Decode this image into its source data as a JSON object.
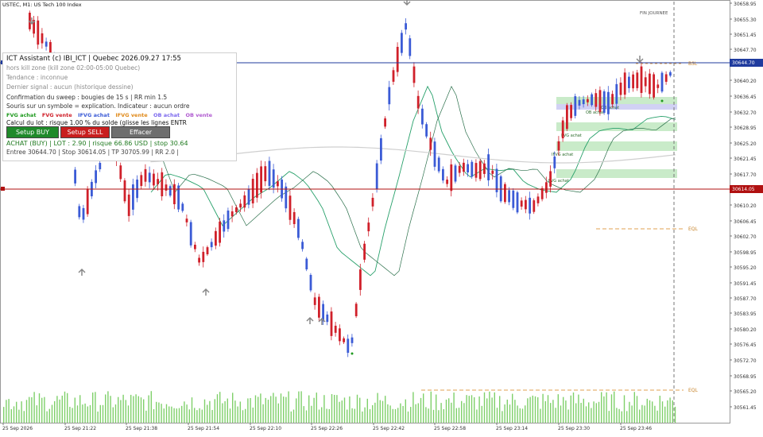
{
  "header": {
    "title": "USTEC, M1:  US Tech 100 Index"
  },
  "session_label": "FIN JOURNEE",
  "price_axis": {
    "labels": [
      "30658.95",
      "30655.30",
      "30651.45",
      "30647.70",
      "30640.20",
      "30636.45",
      "30632.70",
      "30628.95",
      "30625.20",
      "30621.45",
      "30617.70",
      "30610.20",
      "30606.45",
      "30602.70",
      "30598.95",
      "30595.20",
      "30591.45",
      "30587.70",
      "30583.95",
      "30580.20",
      "30576.45",
      "30572.70",
      "30568.95",
      "30565.20",
      "30561.45"
    ],
    "current_price": "30644.70",
    "stop_price": "30614.05"
  },
  "time_axis": {
    "labels": [
      "25 Sep 2026",
      "25 Sep 21:22",
      "25 Sep 21:38",
      "25 Sep 21:54",
      "25 Sep 22:10",
      "25 Sep 22:26",
      "25 Sep 22:42",
      "25 Sep 22:58",
      "25 Sep 23:14",
      "25 Sep 23:30",
      "25 Sep 23:46"
    ]
  },
  "levels": {
    "eql_top": "EQL",
    "eql_bottom": "EQL",
    "bsl": "BSL"
  },
  "zone_labels": [
    "OB achat",
    "OB achat",
    "FVG achat",
    "IFVG achat",
    "FVG achat"
  ],
  "colors": {
    "bull": "#3b5bd6",
    "bear": "#d0202a",
    "volume": "#7fd06a",
    "fvg": "#bfe8bf",
    "ob": "#c9c9f2",
    "price_line": "#1f3b9e",
    "stop_line": "#b01010",
    "eql": "#e2a050"
  },
  "panel": {
    "title": "ICT Assistant (c) IBI_ICT   |   Quebec 2026.09.27 17:55",
    "killzone": "hors kill zone (kill zone 02:00-05:00 Quebec)",
    "tendance": "Tendance : inconnue",
    "signal": "Dernier signal : aucun (historique dessine)",
    "confirmation": "Confirmation du sweep : bougies de 15 s   |   RR min 1.5",
    "mouse_hint": "Souris sur un symbole = explication. Indicateur : aucun ordre",
    "legend": [
      {
        "label": "FVG achat",
        "color": "#1f9a1f"
      },
      {
        "label": "FVG vente",
        "color": "#d0202a"
      },
      {
        "label": "IFVG achat",
        "color": "#3b5bd6"
      },
      {
        "label": "IFVG vente",
        "color": "#e08a1a"
      },
      {
        "label": "OB achat",
        "color": "#7b68ee"
      },
      {
        "label": "OB vente",
        "color": "#b05ad0"
      }
    ],
    "lot_calc": "Calcul du lot : risque 1.00 % du solde  (glisse les lignes ENTR",
    "btn_buy": "Setup BUY",
    "btn_sell": "Setup SELL",
    "btn_clear": "Effacer",
    "order_summary": "ACHAT (BUY)  |  LOT : 2.90  |  risque 66.86 USD  |  stop 30.64",
    "order_levels": "Entree 30644.70  |  Stop 30614.05  |  TP 30705.99  |  RR 2.0  |"
  }
}
